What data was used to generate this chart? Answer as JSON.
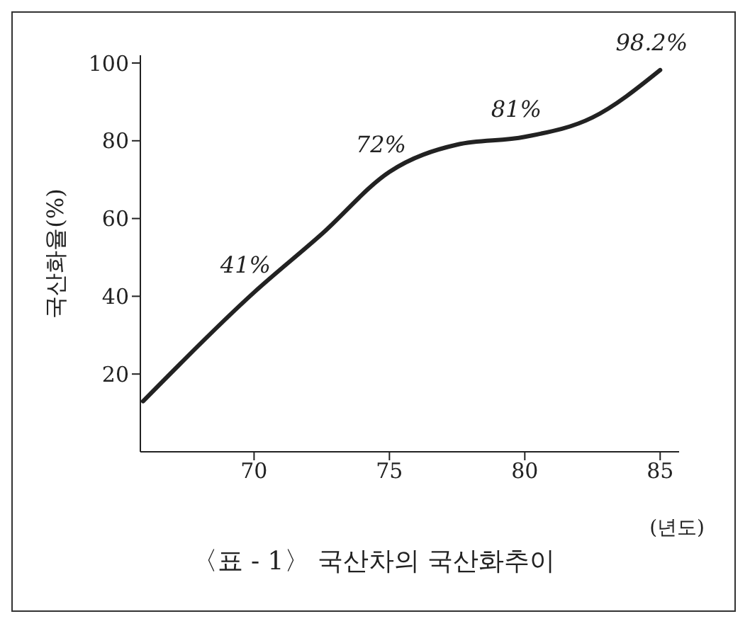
{
  "chart_data": {
    "type": "line",
    "title": "〈표 - 1〉 국산차의 국산화추이",
    "xlabel": "(년도)",
    "ylabel": "국산화율(%)",
    "x": [
      65.9,
      70,
      72.5,
      75,
      77.5,
      80,
      82.5,
      85
    ],
    "series": [
      {
        "color": "#222222",
        "values": [
          13,
          41,
          56,
          72,
          79,
          81,
          86,
          98.2
        ],
        "value_labels": [
          null,
          "41%",
          null,
          "72%",
          null,
          "81%",
          null,
          "98.2%"
        ]
      }
    ],
    "xlim": [
      65.8,
      85.7
    ],
    "xticks": [
      70,
      75,
      80,
      85
    ],
    "ylim": [
      0,
      102
    ],
    "yticks": [
      20,
      40,
      60,
      80,
      100
    ],
    "grid": false,
    "marker": "none",
    "line_style": "solid"
  }
}
